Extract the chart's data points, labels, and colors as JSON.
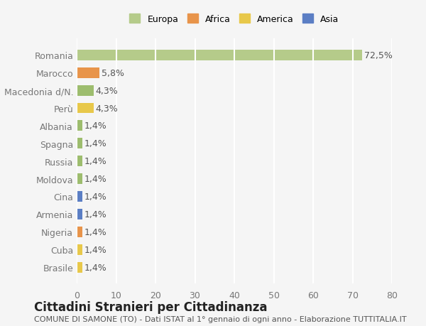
{
  "categories": [
    "Brasile",
    "Cuba",
    "Nigeria",
    "Armenia",
    "Cina",
    "Moldova",
    "Russia",
    "Spagna",
    "Albania",
    "Perù",
    "Macedonia d/N.",
    "Marocco",
    "Romania"
  ],
  "values": [
    1.4,
    1.4,
    1.4,
    1.4,
    1.4,
    1.4,
    1.4,
    1.4,
    1.4,
    4.3,
    4.3,
    5.8,
    72.5
  ],
  "colors": [
    "#e8c84a",
    "#e8c84a",
    "#e8944a",
    "#5b7ec4",
    "#5b7ec4",
    "#9dbd6e",
    "#9dbd6e",
    "#9dbd6e",
    "#9dbd6e",
    "#e8c84a",
    "#9dbd6e",
    "#e8944a",
    "#b5cb8a"
  ],
  "labels": [
    "1,4%",
    "1,4%",
    "1,4%",
    "1,4%",
    "1,4%",
    "1,4%",
    "1,4%",
    "1,4%",
    "1,4%",
    "4,3%",
    "4,3%",
    "5,8%",
    "72,5%"
  ],
  "legend": [
    {
      "label": "Europa",
      "color": "#b5cb8a"
    },
    {
      "label": "Africa",
      "color": "#e8944a"
    },
    {
      "label": "America",
      "color": "#e8c84a"
    },
    {
      "label": "Asia",
      "color": "#5b7ec4"
    }
  ],
  "xlim": [
    0,
    80
  ],
  "xticks": [
    0,
    10,
    20,
    30,
    40,
    50,
    60,
    70,
    80
  ],
  "title": "Cittadini Stranieri per Cittadinanza",
  "subtitle": "COMUNE DI SAMONE (TO) - Dati ISTAT al 1° gennaio di ogni anno - Elaborazione TUTTITALIA.IT",
  "background_color": "#f5f5f5",
  "grid_color": "#ffffff",
  "bar_height": 0.6,
  "label_fontsize": 9,
  "tick_fontsize": 9,
  "title_fontsize": 12,
  "subtitle_fontsize": 8
}
